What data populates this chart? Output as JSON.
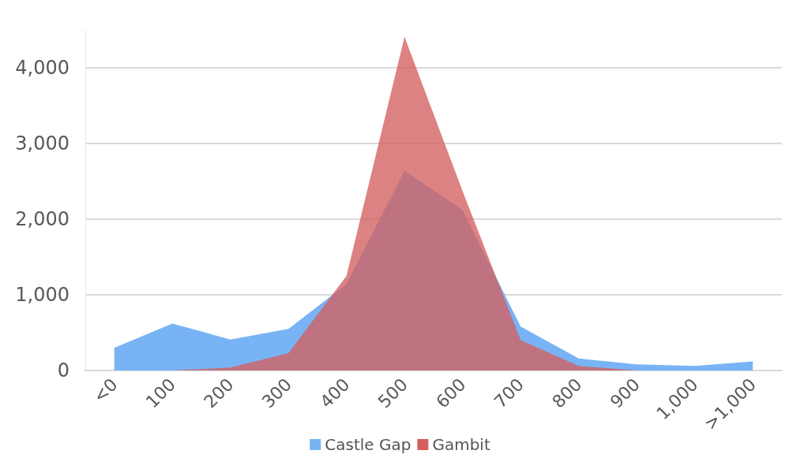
{
  "chart_data": {
    "type": "area",
    "categories": [
      "<0",
      "100",
      "200",
      "300",
      "400",
      "500",
      "600",
      "700",
      "800",
      "900",
      "1,000",
      ">1,000"
    ],
    "series": [
      {
        "name": "Castle Gap",
        "color": "#78b4f5",
        "values": [
          300,
          620,
          410,
          550,
          1140,
          2640,
          2120,
          580,
          160,
          80,
          60,
          120
        ]
      },
      {
        "name": "Gambit",
        "color": "#d45f5f",
        "values": [
          0,
          0,
          40,
          230,
          1250,
          4410,
          2370,
          400,
          60,
          0,
          0,
          0
        ]
      }
    ],
    "ylim": [
      0,
      4500
    ],
    "yticks": [
      0,
      {
        "value": 1000,
        "label": "1,000"
      },
      {
        "value": 2000,
        "label": "2,000"
      },
      {
        "value": 3000,
        "label": "3,000"
      },
      {
        "value": 4000,
        "label": "4,000"
      }
    ],
    "grid": "y",
    "legend": "bottom"
  }
}
